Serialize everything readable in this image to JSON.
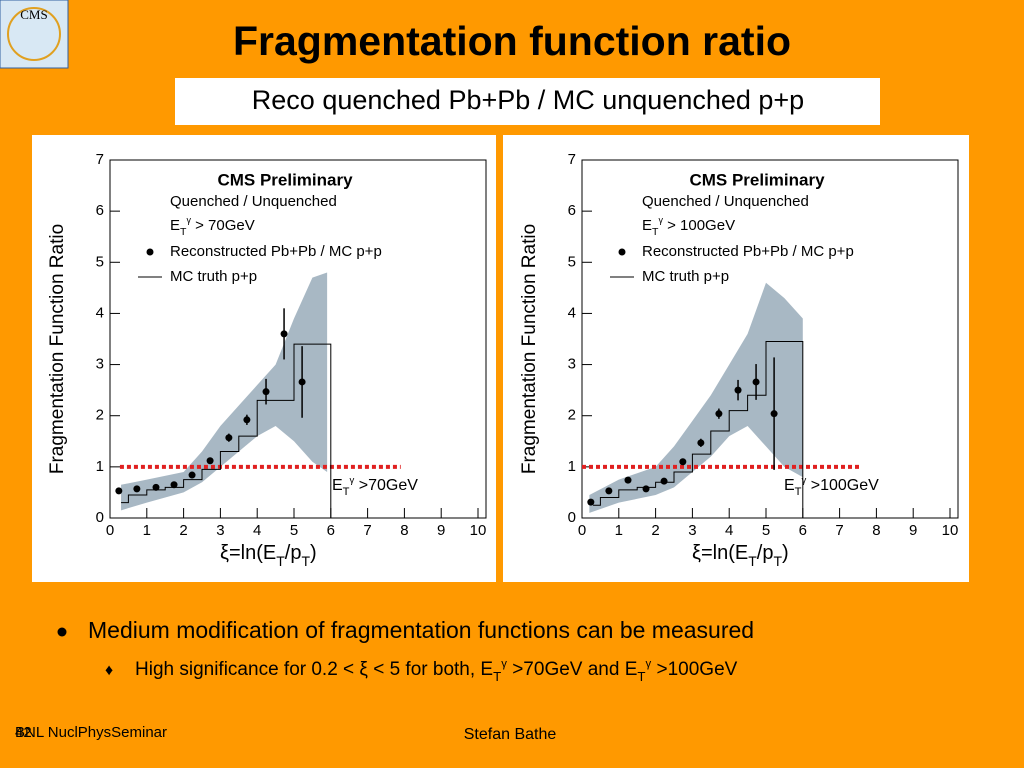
{
  "title": "Fragmentation function ratio",
  "subtitle": "Reco quenched Pb+Pb / MC unquenched p+p",
  "logo": "CMS",
  "bullets": [
    [
      "Medium modification of fragmentation functions can be measured"
    ],
    [
      "High significance for 0.2 < ξ < 5 for both, E",
      "T",
      "γ",
      " >70GeV and E",
      "T",
      "γ",
      " >100GeV"
    ]
  ],
  "footer": {
    "left": "BNL NuclPhysSeminar",
    "page": "42",
    "center": "Stefan Bathe"
  },
  "chart_data": [
    {
      "type": "errorbar",
      "ylabel": "Fragmentation Function Ratio",
      "xlabel": [
        "ξ=ln(E",
        "T",
        "/p",
        "T",
        ")"
      ],
      "xlim": [
        0,
        10
      ],
      "xticks": [
        0,
        1,
        2,
        3,
        4,
        5,
        6,
        7,
        8,
        9,
        10
      ],
      "ylim": [
        0,
        7
      ],
      "yticks": [
        0,
        1,
        2,
        3,
        4,
        5,
        6,
        7
      ],
      "legend_title": "CMS Preliminary",
      "legend_lines": [
        [
          "Quenched / Unquenched"
        ],
        [
          "E",
          "T",
          "γ",
          " > 70GeV"
        ]
      ],
      "annotation": [
        "E",
        "T",
        "γ",
        " >70GeV"
      ],
      "series": [
        {
          "name": "Reconstructed Pb+Pb / MC p+p",
          "color": "#000000",
          "x": [
            0.24,
            0.73,
            1.25,
            1.74,
            2.23,
            2.72,
            3.23,
            3.72,
            4.24,
            4.73,
            5.22
          ],
          "values": [
            0.53,
            0.57,
            0.6,
            0.65,
            0.84,
            1.12,
            1.57,
            1.92,
            2.47,
            3.6,
            2.66
          ],
          "errors": [
            0.05,
            0.05,
            0.05,
            0.05,
            0.06,
            0.06,
            0.08,
            0.1,
            0.25,
            0.5,
            0.7
          ]
        },
        {
          "name": "MC truth p+p",
          "color": "#000000",
          "bins": [
            0.3,
            0.5,
            1.0,
            1.5,
            2.0,
            2.5,
            3.0,
            3.5,
            4.0,
            4.5,
            5.0,
            6.0
          ],
          "values": [
            0.3,
            0.45,
            0.55,
            0.6,
            0.75,
            0.95,
            1.3,
            1.6,
            2.3,
            2.3,
            3.4
          ],
          "band_x": [
            0.3,
            1,
            2,
            2.5,
            3,
            3.5,
            4,
            4.5,
            5,
            5.5,
            5.9
          ],
          "band_lower": [
            0.15,
            0.3,
            0.5,
            0.7,
            1.0,
            1.3,
            1.6,
            1.8,
            1.5,
            1.1,
            0.9
          ],
          "band_upper": [
            0.65,
            0.75,
            0.9,
            1.3,
            1.8,
            2.2,
            2.6,
            3.0,
            3.9,
            4.7,
            4.8
          ],
          "band_color": "#a8b8c4"
        }
      ],
      "ref_line": {
        "y": 1,
        "x": [
          0.27,
          7.9
        ],
        "color": "#e02020"
      }
    },
    {
      "type": "errorbar",
      "ylabel": "Fragmentation Function Ratio",
      "xlabel": [
        "ξ=ln(E",
        "T",
        "/p",
        "T",
        ")"
      ],
      "xlim": [
        0,
        10
      ],
      "xticks": [
        0,
        1,
        2,
        3,
        4,
        5,
        6,
        7,
        8,
        9,
        10
      ],
      "ylim": [
        0,
        7
      ],
      "yticks": [
        0,
        1,
        2,
        3,
        4,
        5,
        6,
        7
      ],
      "legend_title": "CMS Preliminary",
      "legend_lines": [
        [
          "Quenched / Unquenched"
        ],
        [
          "E",
          "T",
          "γ",
          " > 100GeV"
        ]
      ],
      "annotation": [
        "E",
        "T",
        "γ",
        " >100GeV"
      ],
      "series": [
        {
          "name": "Reconstructed Pb+Pb / MC p+p",
          "color": "#000000",
          "x": [
            0.24,
            0.73,
            1.25,
            1.74,
            2.23,
            2.74,
            3.23,
            3.72,
            4.24,
            4.73,
            5.22
          ],
          "values": [
            0.31,
            0.53,
            0.74,
            0.57,
            0.72,
            1.1,
            1.47,
            2.04,
            2.5,
            2.66,
            2.04
          ],
          "errors": [
            0.05,
            0.05,
            0.05,
            0.05,
            0.06,
            0.06,
            0.08,
            0.1,
            0.2,
            0.35,
            1.1
          ]
        },
        {
          "name": "MC truth p+p",
          "color": "#000000",
          "bins": [
            0.3,
            0.5,
            1.0,
            1.5,
            2.0,
            2.5,
            3.0,
            3.5,
            4.0,
            4.5,
            5.0,
            6.0
          ],
          "values": [
            0.25,
            0.4,
            0.55,
            0.6,
            0.7,
            0.9,
            1.25,
            1.7,
            2.1,
            2.4,
            3.45
          ],
          "band_x": [
            0.2,
            1,
            2,
            2.5,
            3,
            3.5,
            4,
            4.5,
            5,
            5.5,
            6
          ],
          "band_lower": [
            0.1,
            0.3,
            0.45,
            0.6,
            0.9,
            1.2,
            1.6,
            1.8,
            1.4,
            1.0,
            0.8
          ],
          "band_upper": [
            0.45,
            0.75,
            1.0,
            1.4,
            1.9,
            2.4,
            3.0,
            3.6,
            4.6,
            4.3,
            3.9
          ],
          "band_color": "#a8b8c4"
        }
      ],
      "ref_line": {
        "y": 1,
        "x": [
          0,
          7.6
        ],
        "color": "#e02020"
      }
    }
  ]
}
